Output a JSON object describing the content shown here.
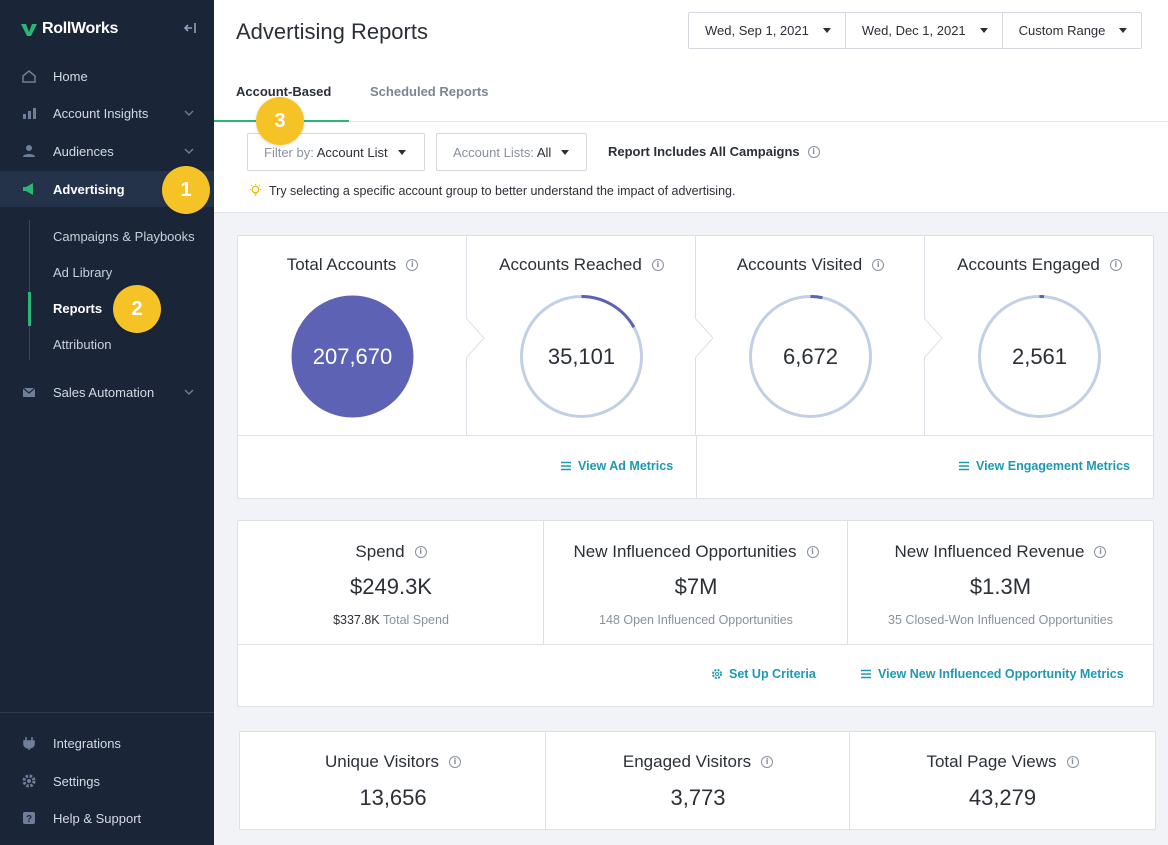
{
  "brand": {
    "name": "RollWorks"
  },
  "sidebar": {
    "items": [
      {
        "label": "Home"
      },
      {
        "label": "Account Insights"
      },
      {
        "label": "Audiences"
      },
      {
        "label": "Advertising"
      },
      {
        "label": "Sales Automation"
      }
    ],
    "sub_items": [
      {
        "label": "Campaigns & Playbooks"
      },
      {
        "label": "Ad Library"
      },
      {
        "label": "Reports"
      },
      {
        "label": "Attribution"
      }
    ],
    "bottom_items": [
      {
        "label": "Integrations"
      },
      {
        "label": "Settings"
      },
      {
        "label": "Help & Support"
      }
    ]
  },
  "callouts": [
    "1",
    "2",
    "3"
  ],
  "header": {
    "title": "Advertising Reports",
    "start_date": "Wed, Sep 1, 2021",
    "end_date": "Wed, Dec 1, 2021",
    "range": "Custom Range",
    "tabs": [
      "Account-Based",
      "Scheduled Reports"
    ]
  },
  "filters": {
    "filter_by_label": "Filter by:",
    "filter_by_value": "Account List",
    "account_lists_label": "Account Lists:",
    "account_lists_value": "All",
    "report_note": "Report Includes All Campaigns",
    "tip": "Try selecting a specific account group to better understand the impact of advertising."
  },
  "funnel": {
    "columns": [
      {
        "title": "Total Accounts",
        "value": "207,670",
        "fraction": 1.0
      },
      {
        "title": "Accounts Reached",
        "value": "35,101",
        "fraction": 0.169
      },
      {
        "title": "Accounts Visited",
        "value": "6,672",
        "fraction": 0.032
      },
      {
        "title": "Accounts Engaged",
        "value": "2,561",
        "fraction": 0.012
      }
    ],
    "links": [
      "View Ad Metrics",
      "View Engagement Metrics"
    ]
  },
  "metrics": {
    "columns": [
      {
        "title": "Spend",
        "value": "$249.3K",
        "sub_strong": "$337.8K",
        "sub": "Total Spend"
      },
      {
        "title": "New Influenced Opportunities",
        "value": "$7M",
        "sub_strong": "",
        "sub": "148 Open Influenced Opportunities"
      },
      {
        "title": "New Influenced Revenue",
        "value": "$1.3M",
        "sub_strong": "",
        "sub": "35 Closed-Won Influenced Opportunities"
      }
    ],
    "links": [
      "Set Up Criteria",
      "View New Influenced Opportunity Metrics"
    ]
  },
  "visitors": {
    "columns": [
      {
        "title": "Unique Visitors",
        "value": "13,656"
      },
      {
        "title": "Engaged Visitors",
        "value": "3,773"
      },
      {
        "title": "Total Page Views",
        "value": "43,279"
      }
    ]
  },
  "colors": {
    "sidebar_bg": "#1a2538",
    "accent_green": "#2bb673",
    "link_teal": "#1e9ab0",
    "callout_yellow": "#f6c327",
    "ring_light": "#c3cfe6",
    "ring_dark": "#5d62b5"
  }
}
